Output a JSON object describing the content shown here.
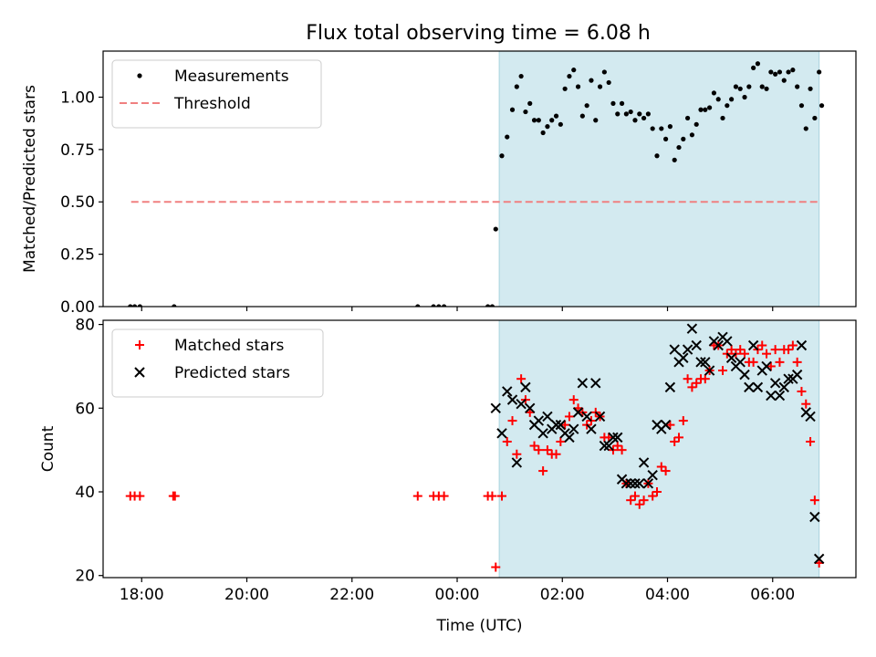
{
  "title": "Flux total observing time = 6.08 h",
  "colors": {
    "background": "#ffffff",
    "observing_span": "#d3eaf0",
    "measurements": "#000000",
    "threshold": "#f08080",
    "matched": "#ff0000",
    "predicted": "#000000"
  },
  "chart_data": [
    {
      "type": "scatter",
      "ylabel": "Matched/Predicted stars",
      "xlim": [
        "17:16",
        "07:35"
      ],
      "ylim": [
        0,
        1.22
      ],
      "yticks": [
        {
          "value": 0.0,
          "label": "0.00"
        },
        {
          "value": 0.25,
          "label": "0.25"
        },
        {
          "value": 0.5,
          "label": "0.50"
        },
        {
          "value": 0.75,
          "label": "0.75"
        },
        {
          "value": 1.0,
          "label": "1.00"
        }
      ],
      "legend_position": "top-left",
      "shaded_span": [
        "00:48",
        "06:53"
      ],
      "threshold": {
        "name": "Threshold",
        "y": 0.5,
        "x_range": [
          "17:48",
          "06:53"
        ],
        "style": "dashed"
      },
      "series": [
        {
          "name": "Measurements",
          "marker": "dot",
          "points": [
            [
              "17:47",
              0
            ],
            [
              "17:52",
              0
            ],
            [
              "17:58",
              0
            ],
            [
              "18:37",
              0
            ],
            [
              "23:15",
              0
            ],
            [
              "23:33",
              0
            ],
            [
              "23:39",
              0
            ],
            [
              "23:45",
              0
            ],
            [
              "00:35",
              0
            ],
            [
              "00:40",
              0
            ],
            [
              "00:44",
              0.37
            ],
            [
              "00:51",
              0.72
            ],
            [
              "00:57",
              0.81
            ],
            [
              "01:03",
              0.94
            ],
            [
              "01:08",
              1.05
            ],
            [
              "01:13",
              1.1
            ],
            [
              "01:18",
              0.93
            ],
            [
              "01:23",
              0.97
            ],
            [
              "01:28",
              0.89
            ],
            [
              "01:33",
              0.89
            ],
            [
              "01:38",
              0.83
            ],
            [
              "01:43",
              0.86
            ],
            [
              "01:48",
              0.89
            ],
            [
              "01:53",
              0.91
            ],
            [
              "01:58",
              0.87
            ],
            [
              "02:03",
              1.04
            ],
            [
              "02:08",
              1.1
            ],
            [
              "02:13",
              1.13
            ],
            [
              "02:18",
              1.05
            ],
            [
              "02:23",
              0.91
            ],
            [
              "02:28",
              0.96
            ],
            [
              "02:33",
              1.08
            ],
            [
              "02:38",
              0.89
            ],
            [
              "02:43",
              1.05
            ],
            [
              "02:48",
              1.12
            ],
            [
              "02:53",
              1.07
            ],
            [
              "02:58",
              0.97
            ],
            [
              "03:03",
              0.92
            ],
            [
              "03:08",
              0.97
            ],
            [
              "03:13",
              0.92
            ],
            [
              "03:18",
              0.93
            ],
            [
              "03:23",
              0.89
            ],
            [
              "03:28",
              0.92
            ],
            [
              "03:33",
              0.9
            ],
            [
              "03:38",
              0.92
            ],
            [
              "03:43",
              0.85
            ],
            [
              "03:48",
              0.72
            ],
            [
              "03:53",
              0.85
            ],
            [
              "03:58",
              0.8
            ],
            [
              "04:03",
              0.86
            ],
            [
              "04:08",
              0.7
            ],
            [
              "04:13",
              0.76
            ],
            [
              "04:18",
              0.8
            ],
            [
              "04:23",
              0.9
            ],
            [
              "04:28",
              0.82
            ],
            [
              "04:33",
              0.87
            ],
            [
              "04:38",
              0.94
            ],
            [
              "04:43",
              0.94
            ],
            [
              "04:48",
              0.95
            ],
            [
              "04:53",
              1.02
            ],
            [
              "04:58",
              0.99
            ],
            [
              "05:03",
              0.9
            ],
            [
              "05:08",
              0.96
            ],
            [
              "05:13",
              0.99
            ],
            [
              "05:18",
              1.05
            ],
            [
              "05:23",
              1.04
            ],
            [
              "05:28",
              1.0
            ],
            [
              "05:33",
              1.05
            ],
            [
              "05:38",
              1.14
            ],
            [
              "05:43",
              1.16
            ],
            [
              "05:48",
              1.05
            ],
            [
              "05:53",
              1.04
            ],
            [
              "05:58",
              1.12
            ],
            [
              "06:03",
              1.11
            ],
            [
              "06:08",
              1.12
            ],
            [
              "06:13",
              1.08
            ],
            [
              "06:18",
              1.12
            ],
            [
              "06:23",
              1.13
            ],
            [
              "06:28",
              1.05
            ],
            [
              "06:33",
              0.96
            ],
            [
              "06:38",
              0.85
            ],
            [
              "06:43",
              1.04
            ],
            [
              "06:48",
              0.9
            ],
            [
              "06:53",
              1.12
            ],
            [
              "06:56",
              0.96
            ]
          ]
        }
      ]
    },
    {
      "type": "scatter",
      "ylabel": "Count",
      "xlabel": "Time (UTC)",
      "xlim": [
        "17:16",
        "07:35"
      ],
      "ylim": [
        19.5,
        81
      ],
      "yticks": [
        {
          "value": 20,
          "label": "20"
        },
        {
          "value": 40,
          "label": "40"
        },
        {
          "value": 60,
          "label": "60"
        },
        {
          "value": 80,
          "label": "80"
        }
      ],
      "xticks": [
        {
          "value": "18:00",
          "label": "18:00"
        },
        {
          "value": "20:00",
          "label": "20:00"
        },
        {
          "value": "22:00",
          "label": "22:00"
        },
        {
          "value": "00:00",
          "label": "00:00"
        },
        {
          "value": "02:00",
          "label": "02:00"
        },
        {
          "value": "04:00",
          "label": "04:00"
        },
        {
          "value": "06:00",
          "label": "06:00"
        }
      ],
      "legend_position": "top-left",
      "shaded_span": [
        "00:48",
        "06:53"
      ],
      "series": [
        {
          "name": "Matched stars",
          "marker": "plus",
          "points": [
            [
              "17:47",
              39
            ],
            [
              "17:52",
              39
            ],
            [
              "17:58",
              39
            ],
            [
              "18:36",
              39
            ],
            [
              "18:38",
              39
            ],
            [
              "23:15",
              39
            ],
            [
              "23:33",
              39
            ],
            [
              "23:39",
              39
            ],
            [
              "23:45",
              39
            ],
            [
              "00:35",
              39
            ],
            [
              "00:40",
              39
            ],
            [
              "00:44",
              22
            ],
            [
              "00:51",
              39
            ],
            [
              "00:57",
              52
            ],
            [
              "01:03",
              57
            ],
            [
              "01:08",
              49
            ],
            [
              "01:13",
              67
            ],
            [
              "01:18",
              62
            ],
            [
              "01:23",
              59
            ],
            [
              "01:28",
              51
            ],
            [
              "01:33",
              50
            ],
            [
              "01:38",
              45
            ],
            [
              "01:43",
              50
            ],
            [
              "01:48",
              49
            ],
            [
              "01:53",
              49
            ],
            [
              "01:58",
              52
            ],
            [
              "02:03",
              56
            ],
            [
              "02:08",
              58
            ],
            [
              "02:13",
              62
            ],
            [
              "02:18",
              60
            ],
            [
              "02:23",
              59
            ],
            [
              "02:28",
              56
            ],
            [
              "02:33",
              57
            ],
            [
              "02:38",
              59
            ],
            [
              "02:43",
              58
            ],
            [
              "02:48",
              53
            ],
            [
              "02:53",
              53
            ],
            [
              "02:58",
              50
            ],
            [
              "03:03",
              51
            ],
            [
              "03:08",
              50
            ],
            [
              "03:13",
              42
            ],
            [
              "03:18",
              38
            ],
            [
              "03:23",
              39
            ],
            [
              "03:28",
              37
            ],
            [
              "03:33",
              38
            ],
            [
              "03:38",
              42
            ],
            [
              "03:43",
              39
            ],
            [
              "03:48",
              40
            ],
            [
              "03:53",
              46
            ],
            [
              "03:58",
              45
            ],
            [
              "04:03",
              56
            ],
            [
              "04:08",
              52
            ],
            [
              "04:13",
              53
            ],
            [
              "04:18",
              57
            ],
            [
              "04:23",
              67
            ],
            [
              "04:28",
              65
            ],
            [
              "04:33",
              66
            ],
            [
              "04:38",
              67
            ],
            [
              "04:43",
              67
            ],
            [
              "04:48",
              69
            ],
            [
              "04:53",
              75
            ],
            [
              "04:58",
              75
            ],
            [
              "05:03",
              69
            ],
            [
              "05:08",
              73
            ],
            [
              "05:13",
              74
            ],
            [
              "05:18",
              73
            ],
            [
              "05:23",
              74
            ],
            [
              "05:28",
              73
            ],
            [
              "05:33",
              71
            ],
            [
              "05:38",
              71
            ],
            [
              "05:43",
              74
            ],
            [
              "05:48",
              75
            ],
            [
              "05:53",
              73
            ],
            [
              "05:58",
              70
            ],
            [
              "06:03",
              74
            ],
            [
              "06:08",
              71
            ],
            [
              "06:13",
              74
            ],
            [
              "06:18",
              74
            ],
            [
              "06:23",
              75
            ],
            [
              "06:28",
              71
            ],
            [
              "06:33",
              64
            ],
            [
              "06:38",
              61
            ],
            [
              "06:43",
              52
            ],
            [
              "06:48",
              38
            ],
            [
              "06:53",
              23
            ]
          ]
        },
        {
          "name": "Predicted stars",
          "marker": "x",
          "points": [
            [
              "00:44",
              60
            ],
            [
              "00:51",
              54
            ],
            [
              "00:57",
              64
            ],
            [
              "01:03",
              62
            ],
            [
              "01:08",
              47
            ],
            [
              "01:13",
              61
            ],
            [
              "01:18",
              65
            ],
            [
              "01:23",
              60
            ],
            [
              "01:28",
              56
            ],
            [
              "01:33",
              57
            ],
            [
              "01:38",
              54
            ],
            [
              "01:43",
              58
            ],
            [
              "01:48",
              55
            ],
            [
              "01:53",
              56
            ],
            [
              "01:58",
              56
            ],
            [
              "02:03",
              54
            ],
            [
              "02:08",
              53
            ],
            [
              "02:13",
              55
            ],
            [
              "02:18",
              59
            ],
            [
              "02:23",
              66
            ],
            [
              "02:28",
              58
            ],
            [
              "02:33",
              55
            ],
            [
              "02:38",
              66
            ],
            [
              "02:43",
              58
            ],
            [
              "02:48",
              51
            ],
            [
              "02:53",
              51
            ],
            [
              "02:58",
              53
            ],
            [
              "03:03",
              53
            ],
            [
              "03:08",
              43
            ],
            [
              "03:13",
              42
            ],
            [
              "03:18",
              42
            ],
            [
              "03:23",
              42
            ],
            [
              "03:28",
              42
            ],
            [
              "03:33",
              47
            ],
            [
              "03:38",
              42
            ],
            [
              "03:43",
              44
            ],
            [
              "03:48",
              56
            ],
            [
              "03:53",
              55
            ],
            [
              "03:58",
              56
            ],
            [
              "04:03",
              65
            ],
            [
              "04:08",
              74
            ],
            [
              "04:13",
              71
            ],
            [
              "04:18",
              72
            ],
            [
              "04:23",
              74
            ],
            [
              "04:28",
              79
            ],
            [
              "04:33",
              75
            ],
            [
              "04:38",
              71
            ],
            [
              "04:43",
              71
            ],
            [
              "04:48",
              69
            ],
            [
              "04:53",
              76
            ],
            [
              "04:58",
              75
            ],
            [
              "05:03",
              77
            ],
            [
              "05:08",
              76
            ],
            [
              "05:13",
              72
            ],
            [
              "05:18",
              70
            ],
            [
              "05:23",
              71
            ],
            [
              "05:28",
              68
            ],
            [
              "05:33",
              65
            ],
            [
              "05:38",
              75
            ],
            [
              "05:43",
              65
            ],
            [
              "05:48",
              69
            ],
            [
              "05:53",
              70
            ],
            [
              "05:58",
              63
            ],
            [
              "06:03",
              66
            ],
            [
              "06:08",
              63
            ],
            [
              "06:13",
              65
            ],
            [
              "06:18",
              67
            ],
            [
              "06:23",
              67
            ],
            [
              "06:28",
              68
            ],
            [
              "06:33",
              75
            ],
            [
              "06:38",
              59
            ],
            [
              "06:43",
              58
            ],
            [
              "06:48",
              34
            ],
            [
              "06:53",
              24
            ]
          ]
        }
      ]
    }
  ]
}
